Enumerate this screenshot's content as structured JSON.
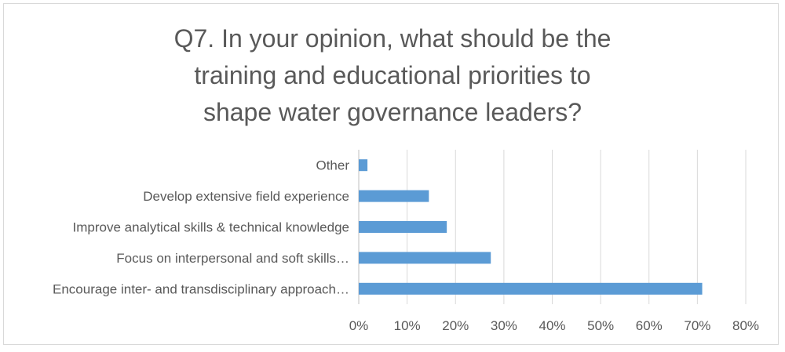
{
  "chart_data": {
    "type": "bar",
    "orientation": "horizontal",
    "title": "Q7. In your opinion, what should be the training and educational priorities to shape water governance leaders?",
    "categories": [
      "Encourage inter- and transdisciplinary approach…",
      "Focus on interpersonal and soft skills…",
      "Improve analytical skills & technical knowledge",
      "Develop extensive field experience",
      "Other"
    ],
    "values": [
      0.71,
      0.273,
      0.182,
      0.145,
      0.018
    ],
    "xlim": [
      0,
      0.8
    ],
    "xticks": [
      0,
      0.1,
      0.2,
      0.3,
      0.4,
      0.5,
      0.6,
      0.7,
      0.8
    ],
    "xtick_labels": [
      "0%",
      "10%",
      "20%",
      "30%",
      "40%",
      "50%",
      "60%",
      "70%",
      "80%"
    ],
    "xlabel": "",
    "ylabel": "",
    "grid": true,
    "legend": "none",
    "bar_color": "#5b9bd5"
  }
}
